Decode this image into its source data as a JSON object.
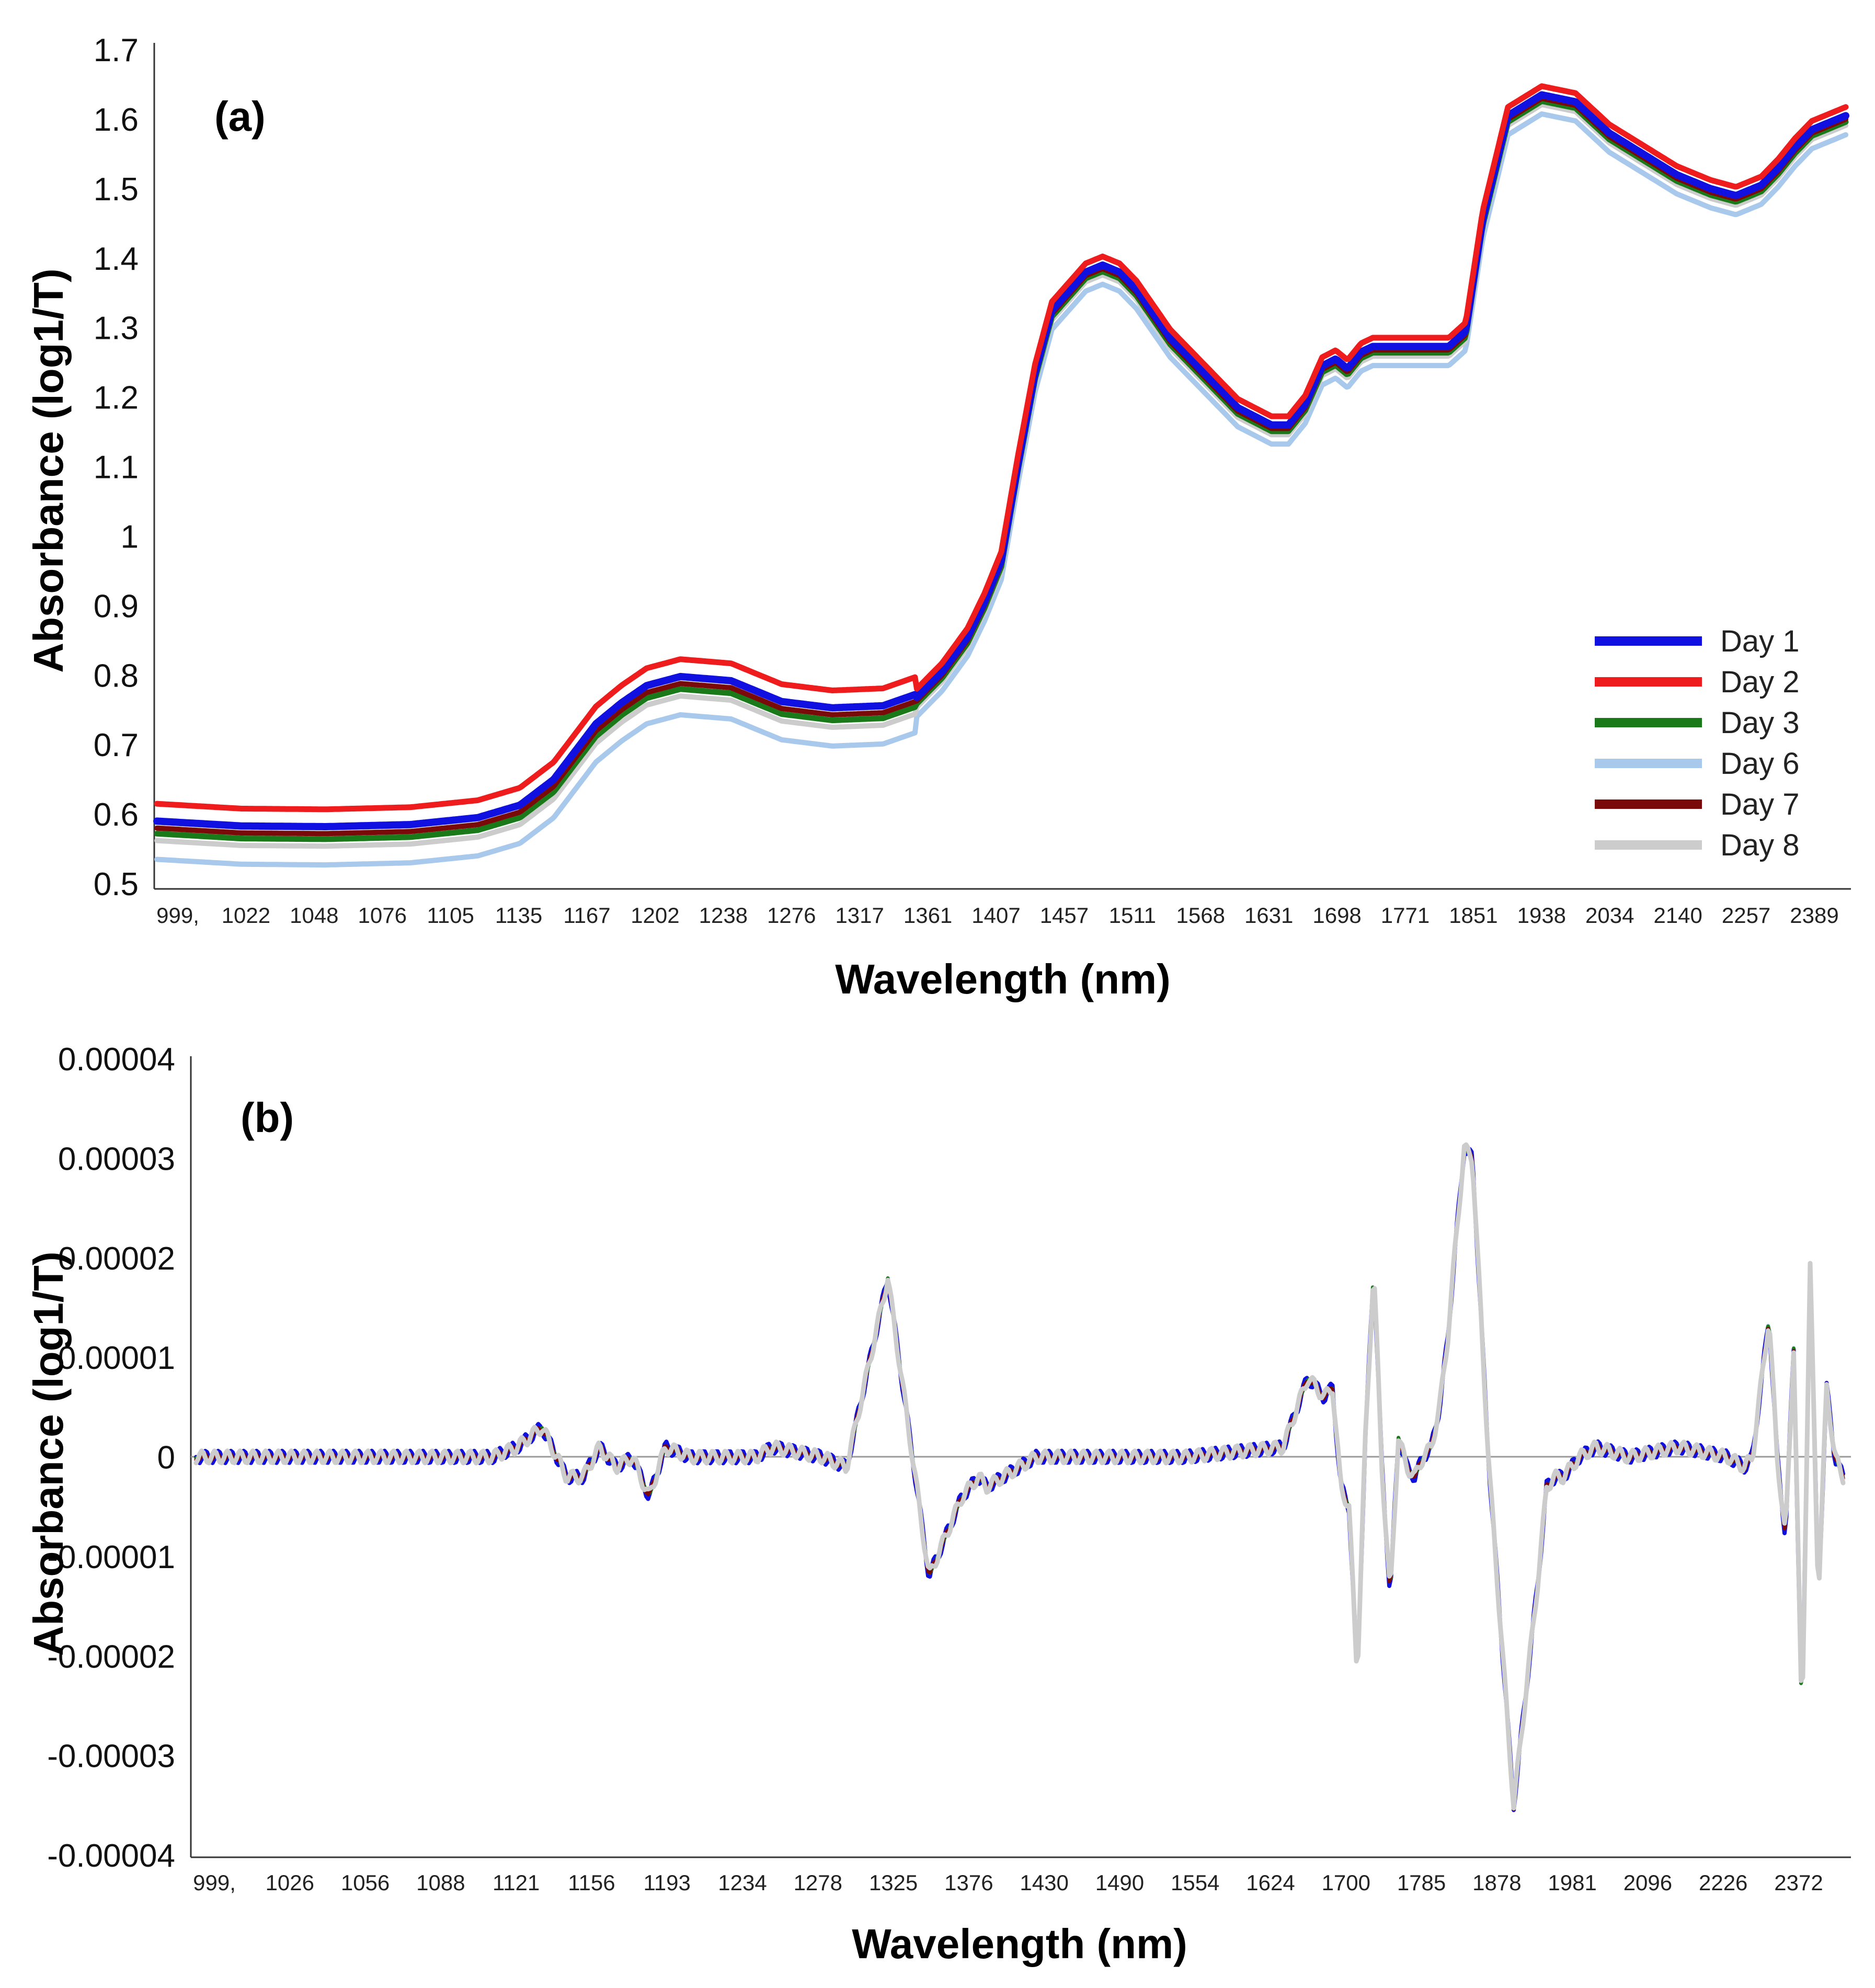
{
  "chart_data": [
    {
      "type": "line",
      "panel_label": "(a)",
      "xlabel": "Wavelength (nm)",
      "ylabel": "Absorbance (log1/T)",
      "ylim": [
        0.5,
        1.7
      ],
      "y_ticks": [
        "0.5",
        "0.6",
        "0.7",
        "0.8",
        "0.9",
        "1",
        "1.1",
        "1.2",
        "1.3",
        "1.4",
        "1.5",
        "1.6",
        "1.7"
      ],
      "x_tick_labels": [
        "999,",
        "1022",
        "1048",
        "1076",
        "1105",
        "1135",
        "1167",
        "1202",
        "1238",
        "1276",
        "1317",
        "1361",
        "1407",
        "1457",
        "1511",
        "1568",
        "1631",
        "1698",
        "1771",
        "1851",
        "1938",
        "2034",
        "2140",
        "2257",
        "2389"
      ],
      "legend_position": "bottom-right",
      "series": [
        {
          "name": "Day 1",
          "color": "#1010e0",
          "offset": 0.01
        },
        {
          "name": "Day 2",
          "color": "#ee1c1c",
          "offset": 0.035
        },
        {
          "name": "Day 3",
          "color": "#1a7a1a",
          "offset": -0.008
        },
        {
          "name": "Day 6",
          "color": "#a8c8ec",
          "offset": -0.045
        },
        {
          "name": "Day 7",
          "color": "#7a0a0a",
          "offset": 0.0
        },
        {
          "name": "Day 8",
          "color": "#cccccc",
          "offset": -0.018
        }
      ],
      "profile": {
        "x": [
          0.0,
          0.05,
          0.1,
          0.15,
          0.19,
          0.215,
          0.235,
          0.26,
          0.275,
          0.29,
          0.31,
          0.34,
          0.37,
          0.4,
          0.43,
          0.45,
          0.465,
          0.48,
          0.49,
          0.5,
          0.51,
          0.52,
          0.53,
          0.55,
          0.56,
          0.57,
          0.58,
          0.6,
          0.62,
          0.64,
          0.66,
          0.67,
          0.68,
          0.69,
          0.698,
          0.705,
          0.713,
          0.72,
          0.74,
          0.765,
          0.775,
          0.785,
          0.8,
          0.82,
          0.84,
          0.86,
          0.88,
          0.9,
          0.92,
          0.935,
          0.95,
          0.96,
          0.97,
          0.98,
          1.0
        ],
        "y": [
          0.58,
          0.573,
          0.572,
          0.575,
          0.585,
          0.603,
          0.64,
          0.72,
          0.75,
          0.775,
          0.788,
          0.782,
          0.752,
          0.743,
          0.746,
          0.763,
          0.8,
          0.85,
          0.9,
          0.96,
          1.1,
          1.23,
          1.32,
          1.375,
          1.385,
          1.375,
          1.35,
          1.28,
          1.23,
          1.18,
          1.155,
          1.155,
          1.185,
          1.24,
          1.25,
          1.236,
          1.26,
          1.268,
          1.268,
          1.268,
          1.29,
          1.45,
          1.6,
          1.63,
          1.62,
          1.575,
          1.545,
          1.515,
          1.495,
          1.485,
          1.5,
          1.525,
          1.555,
          1.58,
          1.6
        ]
      }
    },
    {
      "type": "line",
      "panel_label": "(b)",
      "xlabel": "Wavelength (nm)",
      "ylabel": "Absorbance (log1/T)",
      "ylim": [
        -4e-05,
        4e-05
      ],
      "y_ticks": [
        "-0.00004",
        "-0.00003",
        "-0.00002",
        "-0.00001",
        "0",
        "0.00001",
        "0.00002",
        "0.00003",
        "0.00004"
      ],
      "x_tick_labels": [
        "999,",
        "1026",
        "1056",
        "1088",
        "1121",
        "1156",
        "1193",
        "1234",
        "1278",
        "1325",
        "1376",
        "1430",
        "1490",
        "1554",
        "1624",
        "1700",
        "1785",
        "1878",
        "1981",
        "2096",
        "2226",
        "2372"
      ],
      "series": [
        {
          "name": "Day 1",
          "color": "#1010e0"
        },
        {
          "name": "Day 2",
          "color": "#ee1c1c"
        },
        {
          "name": "Day 3",
          "color": "#1a7a1a"
        },
        {
          "name": "Day 6",
          "color": "#a8c8ec"
        },
        {
          "name": "Day 7",
          "color": "#7a0a0a"
        },
        {
          "name": "Day 8",
          "color": "#cccccc"
        }
      ],
      "profile": {
        "x": [
          0.0,
          0.1,
          0.15,
          0.18,
          0.195,
          0.21,
          0.225,
          0.235,
          0.245,
          0.255,
          0.265,
          0.275,
          0.285,
          0.3,
          0.31,
          0.32,
          0.34,
          0.35,
          0.38,
          0.395,
          0.42,
          0.445,
          0.455,
          0.465,
          0.475,
          0.48,
          0.49,
          0.5,
          0.51,
          0.53,
          0.56,
          0.6,
          0.66,
          0.675,
          0.685,
          0.69,
          0.695,
          0.7,
          0.705,
          0.71,
          0.715,
          0.72,
          0.725,
          0.73,
          0.735,
          0.74,
          0.745,
          0.75,
          0.755,
          0.76,
          0.765,
          0.77,
          0.775,
          0.785,
          0.8,
          0.815,
          0.82,
          0.825,
          0.83,
          0.835,
          0.84,
          0.85,
          0.87,
          0.9,
          0.93,
          0.94,
          0.945,
          0.955,
          0.96,
          0.965,
          0.97,
          0.975,
          0.98,
          0.985,
          0.99,
          0.995,
          1.0
        ],
        "y": [
          0.0,
          0.0,
          0.0,
          0.0,
          1e-06,
          3e-06,
          -2e-06,
          -2e-06,
          1e-06,
          -1e-06,
          0.0,
          -4e-06,
          1e-06,
          0.0,
          0.0,
          0.0,
          0.0,
          1e-06,
          0.0,
          -1e-06,
          1.8e-05,
          -1.2e-05,
          -8e-06,
          -4e-06,
          -2e-06,
          -3e-06,
          -2e-06,
          -1e-06,
          0.0,
          0.0,
          0.0,
          0.0,
          1e-06,
          8e-06,
          6e-06,
          7e-06,
          -3e-06,
          -5e-06,
          -2.2e-05,
          2e-06,
          1.9e-05,
          -1e-06,
          -1.4e-05,
          2e-06,
          -1e-06,
          -2e-06,
          0.0,
          1e-06,
          5e-06,
          1.2e-05,
          2.2e-05,
          3.1e-05,
          3e-05,
          -1e-06,
          -3.5e-05,
          -1.2e-05,
          -3e-06,
          -2e-06,
          -2e-06,
          -1e-06,
          0.0,
          1e-06,
          0.0,
          1e-06,
          0.0,
          -1e-06,
          0.0,
          1.4e-05,
          0.0,
          -8e-06,
          1.1e-05,
          -2.7e-05,
          1.9e-05,
          -1.4e-05,
          7e-06,
          0.0,
          -2e-06
        ]
      }
    }
  ]
}
